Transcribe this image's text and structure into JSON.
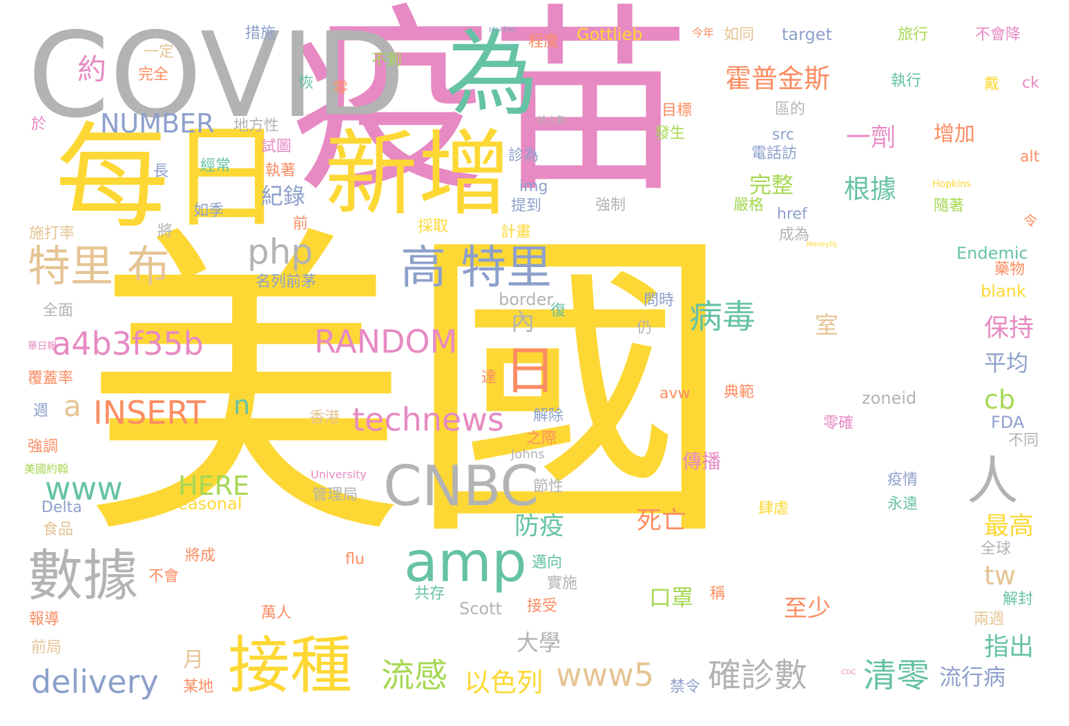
{
  "palette": {
    "yellow": "#fdd835",
    "pink": "#e78ac3",
    "gray": "#b3b3b3",
    "green": "#66c2a5",
    "orange": "#fc8d62",
    "blue": "#8da0cb",
    "lime": "#a6d854",
    "tan": "#e5c494"
  },
  "words": [
    {
      "text": "美國",
      "color": "yellow"
    },
    {
      "text": "疫苗",
      "color": "pink"
    },
    {
      "text": "COVID",
      "color": "gray"
    },
    {
      "text": "每日",
      "color": "yellow"
    },
    {
      "text": "新增",
      "color": "yellow"
    },
    {
      "text": "為",
      "color": "green"
    },
    {
      "text": "一",
      "color": "pink"
    },
    {
      "text": "接種",
      "color": "yellow"
    },
    {
      "text": "數據",
      "color": "gray"
    },
    {
      "text": "CNBC",
      "color": "gray"
    },
    {
      "text": "amp",
      "color": "green"
    },
    {
      "text": "高 特里",
      "color": "blue"
    },
    {
      "text": "特里 布",
      "color": "tan"
    },
    {
      "text": "a4b3f35b",
      "color": "pink"
    },
    {
      "text": "RANDOM",
      "color": "pink"
    },
    {
      "text": "technews",
      "color": "pink"
    },
    {
      "text": "INSERT",
      "color": "orange"
    },
    {
      "text": "delivery",
      "color": "blue"
    },
    {
      "text": "www5",
      "color": "tan"
    },
    {
      "text": "www",
      "color": "green"
    },
    {
      "text": "日",
      "color": "orange"
    },
    {
      "text": "人",
      "color": "gray"
    },
    {
      "text": "php",
      "color": "gray"
    },
    {
      "text": "NUMBER",
      "color": "blue"
    },
    {
      "text": "流感",
      "color": "lime"
    },
    {
      "text": "確診數",
      "color": "gray"
    },
    {
      "text": "清零",
      "color": "green"
    },
    {
      "text": "病毒",
      "color": "green"
    },
    {
      "text": "以色列",
      "color": "yellow"
    },
    {
      "text": "霍普金斯",
      "color": "orange"
    },
    {
      "text": "根據",
      "color": "green"
    },
    {
      "text": "一劑",
      "color": "pink"
    },
    {
      "text": "增加",
      "color": "orange"
    },
    {
      "text": "保持",
      "color": "pink"
    },
    {
      "text": "平均",
      "color": "blue"
    },
    {
      "text": "cb",
      "color": "lime"
    },
    {
      "text": "tw",
      "color": "tan"
    },
    {
      "text": "指出",
      "color": "green"
    },
    {
      "text": "最高",
      "color": "yellow"
    },
    {
      "text": "約",
      "color": "pink"
    },
    {
      "text": "a",
      "color": "tan"
    },
    {
      "text": "n",
      "color": "green"
    },
    {
      "text": "HERE",
      "color": "lime"
    },
    {
      "text": "防疫",
      "color": "green"
    },
    {
      "text": "死亡",
      "color": "orange"
    },
    {
      "text": "口罩",
      "color": "lime"
    },
    {
      "text": "至少",
      "color": "orange"
    },
    {
      "text": "流行病",
      "color": "blue"
    },
    {
      "text": "完整",
      "color": "lime"
    },
    {
      "text": "室",
      "color": "tan"
    },
    {
      "text": "內",
      "color": "gray"
    },
    {
      "text": "紀錄",
      "color": "blue"
    },
    {
      "text": "大學",
      "color": "gray"
    },
    {
      "text": "月",
      "color": "tan"
    },
    {
      "text": "傳播",
      "color": "pink"
    },
    {
      "text": "Gottlieb",
      "color": "yellow"
    },
    {
      "text": "target",
      "color": "blue"
    },
    {
      "text": "Endemic",
      "color": "green"
    },
    {
      "text": "blank",
      "color": "yellow"
    },
    {
      "text": "border",
      "color": "gray"
    },
    {
      "text": "zoneid",
      "color": "gray"
    },
    {
      "text": "Seasonal",
      "color": "yellow"
    },
    {
      "text": "Delta",
      "color": "blue"
    },
    {
      "text": "Scott",
      "color": "gray"
    },
    {
      "text": "University",
      "color": "pink"
    },
    {
      "text": "Johns",
      "color": "gray"
    },
    {
      "text": "Hopkins",
      "color": "yellow"
    },
    {
      "text": "FDA",
      "color": "blue"
    },
    {
      "text": "alt",
      "color": "orange"
    },
    {
      "text": "ck",
      "color": "pink"
    },
    {
      "text": "href",
      "color": "blue"
    },
    {
      "text": "img",
      "color": "blue"
    },
    {
      "text": "src",
      "color": "blue"
    },
    {
      "text": "avw",
      "color": "orange"
    },
    {
      "text": "flu",
      "color": "orange"
    },
    {
      "text": "MoneyDJ",
      "color": "yellow"
    },
    {
      "text": "pixabay",
      "color": "blue"
    },
    {
      "text": "CDC",
      "color": "pink"
    },
    {
      "text": "措施",
      "color": "blue"
    },
    {
      "text": "程度",
      "color": "orange"
    },
    {
      "text": "今年",
      "color": "orange"
    },
    {
      "text": "如同",
      "color": "tan"
    },
    {
      "text": "旅行",
      "color": "lime"
    },
    {
      "text": "不會降",
      "color": "pink"
    },
    {
      "text": "一定",
      "color": "tan"
    },
    {
      "text": "完全",
      "color": "orange"
    },
    {
      "text": "不到",
      "color": "lime"
    },
    {
      "text": "恢",
      "color": "green"
    },
    {
      "text": "零",
      "color": "orange"
    },
    {
      "text": "執行",
      "color": "green"
    },
    {
      "text": "戴",
      "color": "yellow"
    },
    {
      "text": "目標",
      "color": "orange"
    },
    {
      "text": "區的",
      "color": "gray"
    },
    {
      "text": "發生",
      "color": "lime"
    },
    {
      "text": "電話訪",
      "color": "blue"
    },
    {
      "text": "診人數",
      "color": "gray"
    },
    {
      "text": "地方性",
      "color": "gray"
    },
    {
      "text": "試圖",
      "color": "pink"
    },
    {
      "text": "經常",
      "color": "green"
    },
    {
      "text": "執著",
      "color": "orange"
    },
    {
      "text": "診為",
      "color": "blue"
    },
    {
      "text": "長",
      "color": "blue"
    },
    {
      "text": "如季",
      "color": "blue"
    },
    {
      "text": "提到",
      "color": "blue"
    },
    {
      "text": "強制",
      "color": "gray"
    },
    {
      "text": "嚴格",
      "color": "lime"
    },
    {
      "text": "隨著",
      "color": "lime"
    },
    {
      "text": "令",
      "color": "orange"
    },
    {
      "text": "施打率",
      "color": "tan"
    },
    {
      "text": "將",
      "color": "gray"
    },
    {
      "text": "前",
      "color": "orange"
    },
    {
      "text": "計畫",
      "color": "yellow"
    },
    {
      "text": "成為",
      "color": "gray"
    },
    {
      "text": "採取",
      "color": "yellow"
    },
    {
      "text": "名列前茅",
      "color": "blue"
    },
    {
      "text": "藥物",
      "color": "orange"
    },
    {
      "text": "問時",
      "color": "blue"
    },
    {
      "text": "仍",
      "color": "gray"
    },
    {
      "text": "全面",
      "color": "gray"
    },
    {
      "text": "覆蓋率",
      "color": "orange"
    },
    {
      "text": "週",
      "color": "blue"
    },
    {
      "text": "達",
      "color": "orange"
    },
    {
      "text": "復",
      "color": "green"
    },
    {
      "text": "典範",
      "color": "orange"
    },
    {
      "text": "香港",
      "color": "tan"
    },
    {
      "text": "解除",
      "color": "blue"
    },
    {
      "text": "零確",
      "color": "pink"
    },
    {
      "text": "不同",
      "color": "gray"
    },
    {
      "text": "之際",
      "color": "orange"
    },
    {
      "text": "強調",
      "color": "orange"
    },
    {
      "text": "美國約翰",
      "color": "lime"
    },
    {
      "text": "管理局",
      "color": "gray"
    },
    {
      "text": "節性",
      "color": "gray"
    },
    {
      "text": "疫情",
      "color": "blue"
    },
    {
      "text": "永遠",
      "color": "green"
    },
    {
      "text": "肆虐",
      "color": "yellow"
    },
    {
      "text": "食品",
      "color": "tan"
    },
    {
      "text": "將成",
      "color": "orange"
    },
    {
      "text": "不會",
      "color": "orange"
    },
    {
      "text": "邁向",
      "color": "green"
    },
    {
      "text": "實施",
      "color": "gray"
    },
    {
      "text": "全球",
      "color": "gray"
    },
    {
      "text": "共存",
      "color": "green"
    },
    {
      "text": "稱",
      "color": "orange"
    },
    {
      "text": "接受",
      "color": "orange"
    },
    {
      "text": "萬人",
      "color": "orange"
    },
    {
      "text": "報導",
      "color": "orange"
    },
    {
      "text": "解封",
      "color": "green"
    },
    {
      "text": "兩週",
      "color": "tan"
    },
    {
      "text": "前局",
      "color": "tan"
    },
    {
      "text": "某地",
      "color": "orange"
    },
    {
      "text": "禁令",
      "color": "blue"
    },
    {
      "text": "於",
      "color": "pink"
    },
    {
      "text": "華日報",
      "color": "pink"
    }
  ]
}
